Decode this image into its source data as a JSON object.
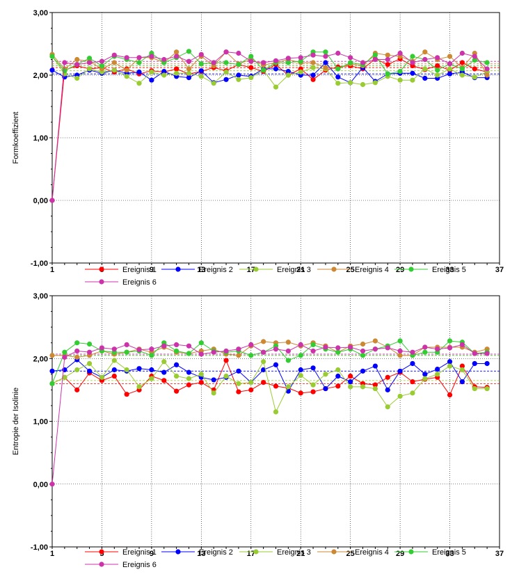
{
  "chart_data": [
    {
      "type": "line",
      "ylabel": "Formkoeffizient",
      "xlabel": "",
      "title": "",
      "ylim": [
        -1,
        3
      ],
      "xlim": [
        1,
        37
      ],
      "y_ticks": [
        "3,00",
        "2,00",
        "1,00",
        "0,00",
        "-1,00"
      ],
      "x_ticks": [
        "1",
        "5",
        "9",
        "13",
        "17",
        "21",
        "25",
        "29",
        "33",
        "37"
      ],
      "grid": true,
      "legend_position": "bottom",
      "x": [
        1,
        2,
        3,
        4,
        5,
        6,
        7,
        8,
        9,
        10,
        11,
        12,
        13,
        14,
        15,
        16,
        17,
        18,
        19,
        20,
        21,
        22,
        23,
        24,
        25,
        26,
        27,
        28,
        29,
        30,
        31,
        32,
        33,
        34,
        35,
        36
      ],
      "series": [
        {
          "name": "Ereignis 1",
          "color": "#ff0000",
          "mean": 2.12,
          "values": [
            0,
            2.08,
            2.15,
            2.1,
            2.12,
            2.05,
            2.1,
            2.02,
            2.07,
            2.05,
            2.1,
            2.02,
            2.06,
            2.12,
            2.07,
            2.17,
            2.12,
            2.06,
            2.17,
            2.0,
            2.1,
            1.93,
            2.08,
            2.13,
            2.15,
            2.1,
            2.26,
            2.17,
            2.26,
            2.15,
            2.09,
            2.15,
            2.08,
            2.2,
            2.1,
            2.05
          ]
        },
        {
          "name": "Ereignis 2",
          "color": "#0000ff",
          "mean": 2.02,
          "values": [
            2.08,
            1.97,
            2.0,
            2.08,
            2.03,
            2.08,
            2.03,
            2.05,
            1.92,
            2.06,
            1.98,
            1.96,
            2.07,
            1.88,
            1.93,
            2.0,
            1.98,
            2.1,
            2.1,
            2.06,
            2.0,
            2.0,
            2.2,
            1.97,
            1.88,
            2.12,
            1.9,
            2.02,
            2.03,
            2.03,
            1.95,
            1.95,
            2.02,
            2.05,
            1.96,
            1.96
          ]
        },
        {
          "name": "Ereignis 3",
          "color": "#99cc33",
          "mean": 2.07,
          "values": [
            2.3,
            2.02,
            1.95,
            2.1,
            2.05,
            2.08,
            1.98,
            1.87,
            2.05,
            2.0,
            2.03,
            2.03,
            1.98,
            1.87,
            2.05,
            1.93,
            1.96,
            2.08,
            1.81,
            2.0,
            2.05,
            2.12,
            2.1,
            1.87,
            1.88,
            1.85,
            1.88,
            1.98,
            1.92,
            1.92,
            2.1,
            2.0,
            2.1,
            2.0,
            1.97,
            2.05
          ]
        },
        {
          "name": "Ereignis 4",
          "color": "#cc8833",
          "mean": 2.18,
          "values": [
            2.33,
            2.1,
            2.25,
            2.22,
            2.1,
            2.2,
            2.08,
            2.28,
            2.28,
            2.2,
            2.37,
            2.1,
            2.3,
            2.15,
            2.37,
            2.18,
            2.25,
            2.16,
            2.2,
            2.25,
            2.2,
            2.2,
            2.12,
            2.1,
            2.18,
            2.15,
            2.35,
            2.32,
            2.3,
            2.22,
            2.37,
            2.25,
            2.3,
            2.12,
            2.35,
            2.0
          ]
        },
        {
          "name": "Ereignis 5",
          "color": "#33cc33",
          "mean": 2.15,
          "values": [
            2.3,
            2.07,
            2.17,
            2.27,
            2.15,
            2.3,
            2.25,
            2.2,
            2.35,
            2.2,
            2.28,
            2.38,
            2.18,
            2.2,
            2.2,
            2.17,
            2.3,
            2.08,
            2.2,
            2.2,
            2.22,
            2.37,
            2.37,
            2.1,
            2.2,
            2.17,
            2.32,
            2.02,
            2.06,
            2.3,
            2.25,
            2.08,
            2.18,
            2.1,
            2.24,
            2.2
          ]
        },
        {
          "name": "Ereignis 6",
          "color": "#cc33aa",
          "mean": 2.22,
          "values": [
            0,
            2.2,
            2.17,
            2.2,
            2.22,
            2.32,
            2.28,
            2.28,
            2.3,
            2.25,
            2.3,
            2.22,
            2.33,
            2.2,
            2.37,
            2.35,
            2.22,
            2.2,
            2.23,
            2.27,
            2.28,
            2.32,
            2.3,
            2.35,
            2.28,
            2.2,
            2.25,
            2.25,
            2.35,
            2.2,
            2.25,
            2.28,
            2.18,
            2.35,
            2.3,
            2.1
          ]
        }
      ]
    },
    {
      "type": "line",
      "ylabel": "Entropie der Isolinie",
      "xlabel": "",
      "title": "",
      "ylim": [
        -1,
        3
      ],
      "xlim": [
        1,
        37
      ],
      "y_ticks": [
        "3,00",
        "2,00",
        "1,00",
        "0,00",
        "-1,00"
      ],
      "x_ticks": [
        "1",
        "5",
        "9",
        "13",
        "17",
        "21",
        "25",
        "29",
        "33",
        "37"
      ],
      "grid": true,
      "legend_position": "bottom",
      "x": [
        1,
        2,
        3,
        4,
        5,
        6,
        7,
        8,
        9,
        10,
        11,
        12,
        13,
        14,
        15,
        16,
        17,
        18,
        19,
        20,
        21,
        22,
        23,
        24,
        25,
        26,
        27,
        28,
        29,
        30,
        31,
        32,
        33,
        34,
        35,
        36
      ],
      "series": [
        {
          "name": "Ereignis 1",
          "color": "#ff0000",
          "mean": 1.6,
          "values": [
            1.6,
            1.7,
            1.5,
            1.77,
            1.65,
            1.72,
            1.43,
            1.5,
            1.72,
            1.65,
            1.48,
            1.58,
            1.62,
            1.5,
            1.97,
            1.47,
            1.5,
            1.62,
            1.56,
            1.53,
            1.45,
            1.47,
            1.52,
            1.56,
            1.72,
            1.6,
            1.58,
            1.7,
            1.78,
            1.63,
            1.67,
            1.7,
            1.42,
            1.88,
            1.55,
            1.54
          ]
        },
        {
          "name": "Ereignis 2",
          "color": "#0000ff",
          "mean": 1.8,
          "values": [
            1.8,
            1.82,
            1.98,
            1.8,
            1.7,
            1.82,
            1.8,
            1.84,
            1.82,
            1.78,
            1.9,
            1.78,
            1.7,
            1.66,
            1.7,
            1.8,
            1.62,
            1.82,
            1.9,
            1.48,
            1.82,
            1.85,
            1.52,
            1.72,
            1.63,
            1.8,
            1.88,
            1.5,
            1.8,
            1.92,
            1.75,
            1.83,
            1.95,
            1.63,
            1.92,
            1.92
          ]
        },
        {
          "name": "Ereignis 3",
          "color": "#99cc33",
          "mean": 1.65,
          "values": [
            1.6,
            1.7,
            1.82,
            1.92,
            1.7,
            1.97,
            1.82,
            1.55,
            1.68,
            1.95,
            1.72,
            1.68,
            1.75,
            1.45,
            1.72,
            1.6,
            1.62,
            1.95,
            1.15,
            1.55,
            1.73,
            1.58,
            1.75,
            1.82,
            1.55,
            1.55,
            1.52,
            1.23,
            1.4,
            1.45,
            1.68,
            1.75,
            1.88,
            1.82,
            1.52,
            1.52
          ]
        },
        {
          "name": "Ereignis 4",
          "color": "#cc8833",
          "mean": 2.05,
          "values": [
            2.05,
            2.05,
            2.02,
            2.05,
            2.12,
            2.07,
            2.1,
            2.15,
            2.1,
            2.18,
            2.1,
            2.08,
            2.12,
            2.15,
            2.07,
            2.05,
            2.2,
            2.27,
            2.25,
            2.26,
            2.2,
            2.25,
            2.2,
            2.1,
            2.2,
            2.23,
            2.28,
            2.18,
            2.05,
            2.05,
            2.18,
            2.18,
            2.18,
            2.18,
            2.1,
            2.15
          ]
        },
        {
          "name": "Ereignis 5",
          "color": "#33cc33",
          "mean": 2.05,
          "values": [
            1.6,
            2.1,
            2.25,
            2.23,
            2.12,
            2.1,
            2.1,
            2.12,
            2.05,
            2.25,
            2.12,
            2.08,
            2.25,
            2.12,
            2.1,
            2.12,
            2.05,
            2.1,
            2.2,
            1.97,
            2.05,
            2.22,
            2.15,
            2.1,
            2.15,
            2.05,
            2.15,
            2.2,
            2.28,
            2.05,
            2.1,
            2.1,
            2.28,
            2.26,
            2.08,
            2.1
          ]
        },
        {
          "name": "Ereignis 6",
          "color": "#cc33aa",
          "mean": 2.07,
          "values": [
            0,
            2.02,
            2.12,
            2.1,
            2.17,
            2.15,
            2.22,
            2.14,
            2.15,
            2.2,
            2.22,
            2.2,
            2.07,
            2.1,
            2.12,
            2.15,
            2.22,
            2.1,
            2.15,
            2.12,
            2.22,
            2.12,
            2.18,
            2.17,
            2.18,
            2.12,
            2.15,
            2.17,
            2.12,
            2.1,
            2.18,
            2.15,
            2.17,
            2.22,
            2.08,
            2.08
          ]
        }
      ]
    }
  ]
}
